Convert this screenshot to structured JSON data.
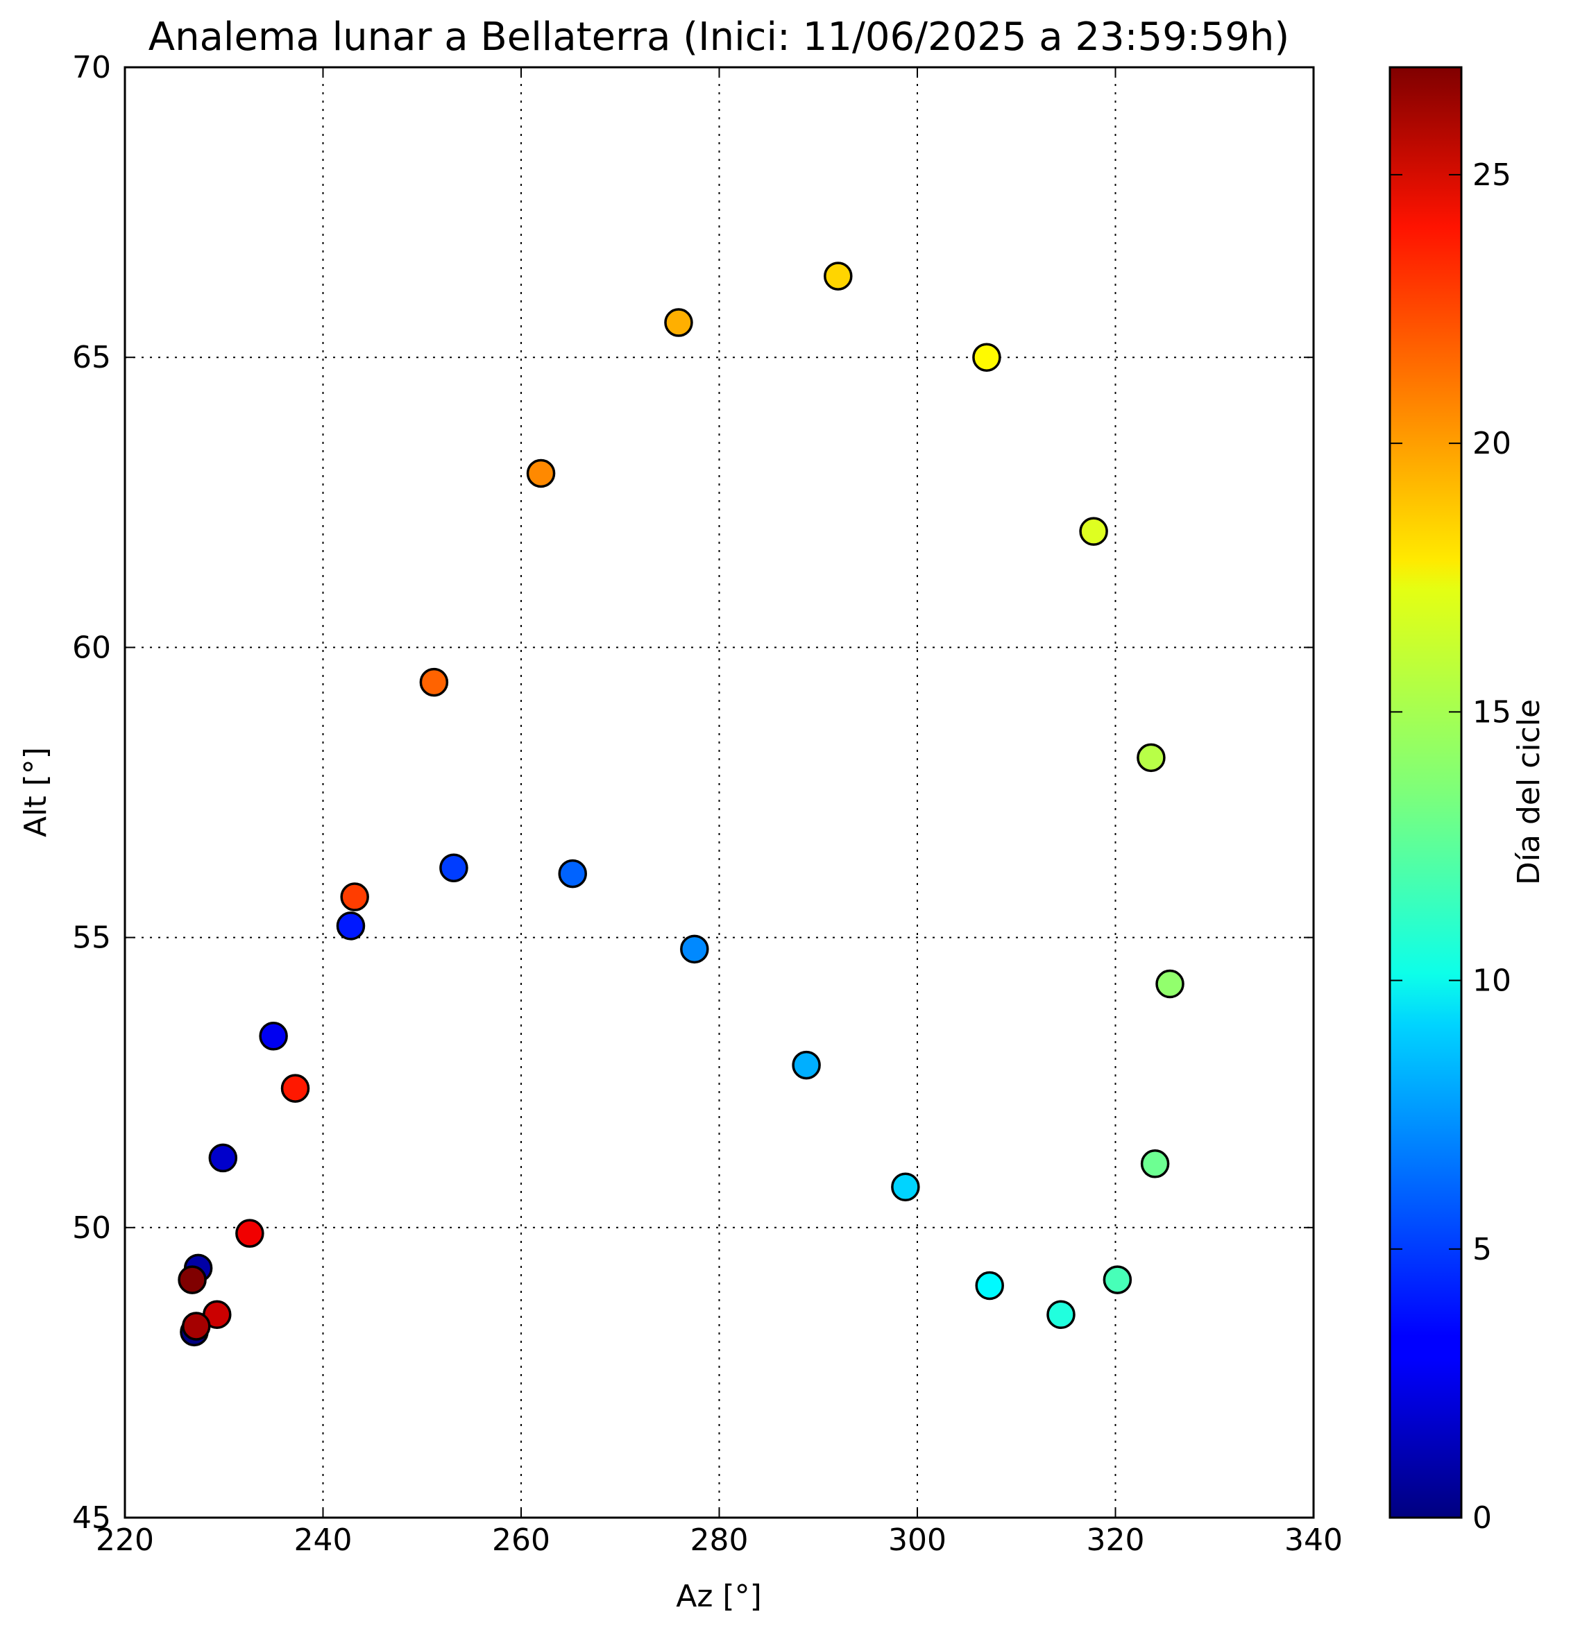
{
  "chart_data": {
    "type": "scatter",
    "title": "Analema lunar a Bellaterra (Inici: 11/06/2025 a 23:59:59h)",
    "xlabel": "Az [°]",
    "ylabel": "Alt [°]",
    "xlim": [
      220,
      340
    ],
    "ylim": [
      45,
      70
    ],
    "xticks": [
      "220",
      "240",
      "260",
      "280",
      "300",
      "320",
      "340"
    ],
    "yticks": [
      "45",
      "50",
      "55",
      "60",
      "65",
      "70"
    ],
    "grid": true,
    "colorbar": {
      "label": "Día del cicle",
      "range": [
        0,
        27
      ],
      "ticks": [
        "0",
        "5",
        "10",
        "15",
        "20",
        "25"
      ],
      "colormap": "jet"
    },
    "points": [
      {
        "day": 0,
        "az": 227.0,
        "alt": 48.2
      },
      {
        "day": 1,
        "az": 227.4,
        "alt": 49.3
      },
      {
        "day": 2,
        "az": 229.9,
        "alt": 51.2
      },
      {
        "day": 3,
        "az": 235.0,
        "alt": 53.3
      },
      {
        "day": 4,
        "az": 242.8,
        "alt": 55.2
      },
      {
        "day": 5,
        "az": 253.2,
        "alt": 56.2
      },
      {
        "day": 6,
        "az": 265.2,
        "alt": 56.1
      },
      {
        "day": 7,
        "az": 277.5,
        "alt": 54.8
      },
      {
        "day": 8,
        "az": 288.8,
        "alt": 52.8
      },
      {
        "day": 9,
        "az": 298.8,
        "alt": 50.7
      },
      {
        "day": 10,
        "az": 307.3,
        "alt": 49.0
      },
      {
        "day": 11,
        "az": 314.5,
        "alt": 48.5
      },
      {
        "day": 12,
        "az": 320.2,
        "alt": 49.1
      },
      {
        "day": 13,
        "az": 324.0,
        "alt": 51.1
      },
      {
        "day": 14,
        "az": 325.5,
        "alt": 54.2
      },
      {
        "day": 15,
        "az": 323.6,
        "alt": 58.1
      },
      {
        "day": 16,
        "az": 317.8,
        "alt": 62.0
      },
      {
        "day": 17,
        "az": 307.0,
        "alt": 65.0
      },
      {
        "day": 18,
        "az": 292.0,
        "alt": 66.4
      },
      {
        "day": 19,
        "az": 275.9,
        "alt": 65.6
      },
      {
        "day": 20,
        "az": 262.0,
        "alt": 63.0
      },
      {
        "day": 21,
        "az": 251.2,
        "alt": 59.4
      },
      {
        "day": 22,
        "az": 243.2,
        "alt": 55.7
      },
      {
        "day": 23,
        "az": 237.2,
        "alt": 52.4
      },
      {
        "day": 24,
        "az": 232.6,
        "alt": 49.9
      },
      {
        "day": 25,
        "az": 229.3,
        "alt": 48.5
      },
      {
        "day": 26,
        "az": 227.2,
        "alt": 48.3
      },
      {
        "day": 27,
        "az": 226.8,
        "alt": 49.1
      }
    ]
  }
}
